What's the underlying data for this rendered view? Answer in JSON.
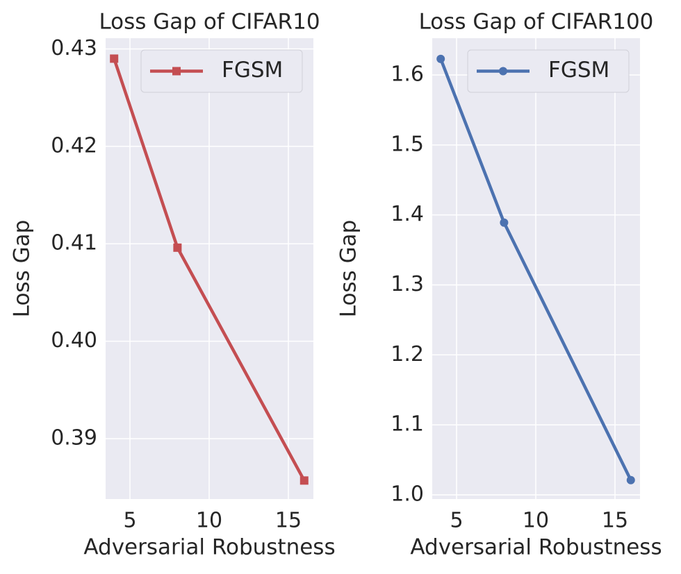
{
  "chart_data": [
    {
      "type": "line",
      "title": "Loss Gap of CIFAR10",
      "x_label": "Adversarial Robustness",
      "y_label": "Loss Gap",
      "x": [
        4,
        8,
        16
      ],
      "series": [
        {
          "name": "FGSM",
          "color": "#c44e52",
          "marker": "square",
          "values": [
            0.429,
            0.4096,
            0.3857
          ]
        }
      ],
      "xlim": [
        3.465,
        16.58
      ],
      "ylim": [
        0.3838,
        0.4311
      ],
      "xticks": [
        5,
        10,
        15
      ],
      "yticks": [
        0.39,
        {
          "value": 0.4,
          "label": "0.40"
        },
        0.41,
        0.42,
        0.43
      ],
      "grid": true,
      "legend": "upper right"
    },
    {
      "type": "line",
      "title": "Loss Gap of CIFAR100",
      "x_label": "Adversarial Robustness",
      "y_label": "Loss Gap",
      "x": [
        4,
        8,
        16
      ],
      "series": [
        {
          "name": "FGSM",
          "color": "#4c72b0",
          "marker": "circle",
          "values": [
            1.623,
            1.389,
            1.021
          ]
        }
      ],
      "xlim": [
        3.465,
        16.58
      ],
      "ylim": [
        0.994,
        1.6526
      ],
      "xticks": [
        5,
        10,
        15
      ],
      "yticks": [
        {
          "value": 1,
          "label": "1.0"
        },
        1.1,
        1.2,
        1.3,
        1.4,
        1.5,
        1.6
      ],
      "grid": true,
      "legend": "upper right"
    }
  ]
}
